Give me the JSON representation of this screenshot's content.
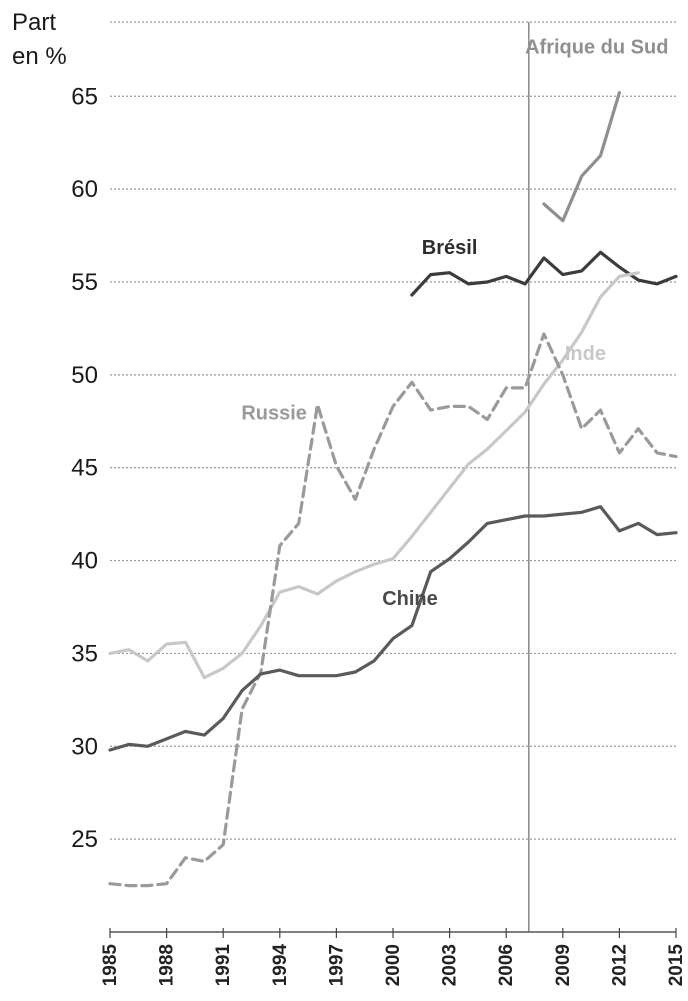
{
  "chart_data": {
    "type": "line",
    "ylabel_line1": "Part",
    "ylabel_line2": "en %",
    "ylim": [
      20,
      69
    ],
    "xlim": [
      1985,
      2015
    ],
    "y_ticks": [
      25,
      30,
      35,
      40,
      45,
      50,
      55,
      60,
      65
    ],
    "x_ticks": [
      1985,
      1988,
      1991,
      1994,
      1997,
      2000,
      2003,
      2006,
      2009,
      2012,
      2015
    ],
    "grid": "horizontal dotted",
    "reference_line_x": 2007.2,
    "series": [
      {
        "name": "Afrique du Sud",
        "color": "#8f8f8f",
        "style": "solid",
        "x": [
          2008,
          2009,
          2010,
          2011,
          2012
        ],
        "y": [
          59.2,
          58.3,
          60.7,
          61.8,
          65.2
        ]
      },
      {
        "name": "Brésil",
        "color": "#3c3c3c",
        "style": "solid",
        "x": [
          2001,
          2002,
          2003,
          2004,
          2005,
          2006,
          2007,
          2008,
          2009,
          2010,
          2011,
          2012,
          2013,
          2014,
          2015
        ],
        "y": [
          54.3,
          55.4,
          55.5,
          54.9,
          55.0,
          55.3,
          54.9,
          56.3,
          55.4,
          55.6,
          56.6,
          55.8,
          55.1,
          54.9,
          55.3
        ]
      },
      {
        "name": "Inde",
        "color": "#c8c8c8",
        "style": "solid",
        "x": [
          1985,
          1986,
          1987,
          1988,
          1989,
          1990,
          1991,
          1992,
          1993,
          1994,
          1995,
          1996,
          1997,
          1998,
          1999,
          2000,
          2001,
          2002,
          2003,
          2004,
          2005,
          2006,
          2007,
          2008,
          2009,
          2010,
          2011,
          2012,
          2013
        ],
        "y": [
          35.0,
          35.2,
          34.6,
          35.5,
          35.6,
          33.7,
          34.2,
          35.0,
          36.5,
          38.3,
          38.6,
          38.2,
          38.9,
          39.4,
          39.8,
          40.1,
          41.3,
          42.6,
          43.9,
          45.2,
          46.0,
          47.0,
          48.0,
          49.5,
          50.8,
          52.3,
          54.2,
          55.3,
          55.5
        ]
      },
      {
        "name": "Russie",
        "color": "#9a9a9a",
        "style": "dashed",
        "x": [
          1985,
          1986,
          1987,
          1988,
          1989,
          1990,
          1991,
          1992,
          1993,
          1994,
          1995,
          1996,
          1997,
          1998,
          1999,
          2000,
          2001,
          2002,
          2003,
          2004,
          2005,
          2006,
          2007,
          2008,
          2009,
          2010,
          2011,
          2012,
          2013,
          2014,
          2015
        ],
        "y": [
          22.6,
          22.5,
          22.5,
          22.6,
          24.0,
          23.8,
          24.7,
          32.0,
          34.0,
          40.8,
          42.0,
          48.4,
          45.1,
          43.3,
          46.0,
          48.3,
          49.6,
          48.1,
          48.3,
          48.3,
          47.6,
          49.3,
          49.3,
          52.2,
          50.0,
          47.1,
          48.1,
          45.8,
          47.1,
          45.8,
          45.6
        ]
      },
      {
        "name": "Chine",
        "color": "#5a5a5a",
        "style": "solid",
        "x": [
          1985,
          1986,
          1987,
          1988,
          1989,
          1990,
          1991,
          1992,
          1993,
          1994,
          1995,
          1996,
          1997,
          1998,
          1999,
          2000,
          2001,
          2002,
          2003,
          2004,
          2005,
          2006,
          2007,
          2008,
          2009,
          2010,
          2011,
          2012,
          2013,
          2014,
          2015
        ],
        "y": [
          29.8,
          30.1,
          30.0,
          30.4,
          30.8,
          30.6,
          31.5,
          33.0,
          33.9,
          34.1,
          33.8,
          33.8,
          33.8,
          34.0,
          34.6,
          35.8,
          36.5,
          39.4,
          40.1,
          41.0,
          42.0,
          42.2,
          42.4,
          42.4,
          42.5,
          42.6,
          42.9,
          41.6,
          42.0,
          41.4,
          41.5
        ]
      }
    ],
    "labels": [
      {
        "text": "Afrique du Sud",
        "series": "Afrique du Sud",
        "color": "#8f8f8f",
        "x": 2010.8,
        "y": 67.3
      },
      {
        "text": "Brésil",
        "series": "Brésil",
        "color": "#2e2e2e",
        "x": 2003.0,
        "y": 56.5
      },
      {
        "text": "Inde",
        "series": "Inde",
        "color": "#c8c8c8",
        "x": 2010.2,
        "y": 50.8
      },
      {
        "text": "Russie",
        "series": "Russie",
        "color": "#9a9a9a",
        "x": 1993.7,
        "y": 47.6
      },
      {
        "text": "Chine",
        "series": "Chine",
        "color": "#4a4a4a",
        "x": 2000.9,
        "y": 37.6
      }
    ]
  }
}
